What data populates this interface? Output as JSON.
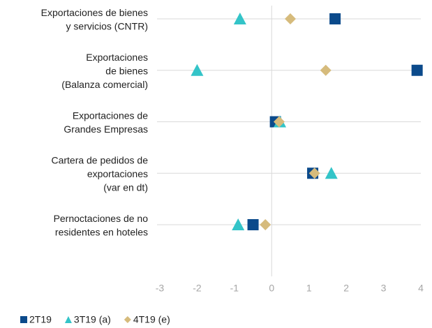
{
  "chart_data": {
    "type": "dot",
    "categories": [
      [
        "Exportaciones de bienes",
        "y servicios (CNTR)"
      ],
      [
        "Exportaciones",
        "de bienes",
        "(Balanza comercial)"
      ],
      [
        "Exportaciones de",
        "Grandes Empresas"
      ],
      [
        "Cartera de pedidos de",
        "exportaciones",
        "(var en dt)"
      ],
      [
        "Pernoctaciones de no",
        "residentes en hoteles"
      ]
    ],
    "series": [
      {
        "name": "2T19",
        "color": "#0b4a8b",
        "marker": "square",
        "values": [
          1.7,
          3.9,
          0.1,
          1.1,
          -0.5
        ]
      },
      {
        "name": "3T19 (a)",
        "color": "#33c4c8",
        "marker": "triangle",
        "values": [
          -0.85,
          -2.0,
          0.22,
          1.6,
          -0.9
        ]
      },
      {
        "name": "4T19 (e)",
        "color": "#d6bb7c",
        "marker": "diamond",
        "values": [
          0.5,
          1.45,
          0.2,
          1.15,
          -0.17
        ]
      }
    ],
    "xlim": [
      -3,
      4
    ],
    "xticks": [
      -3,
      -2,
      -1,
      0,
      1,
      2,
      3,
      4
    ],
    "grid": true,
    "legend": "bottom"
  }
}
